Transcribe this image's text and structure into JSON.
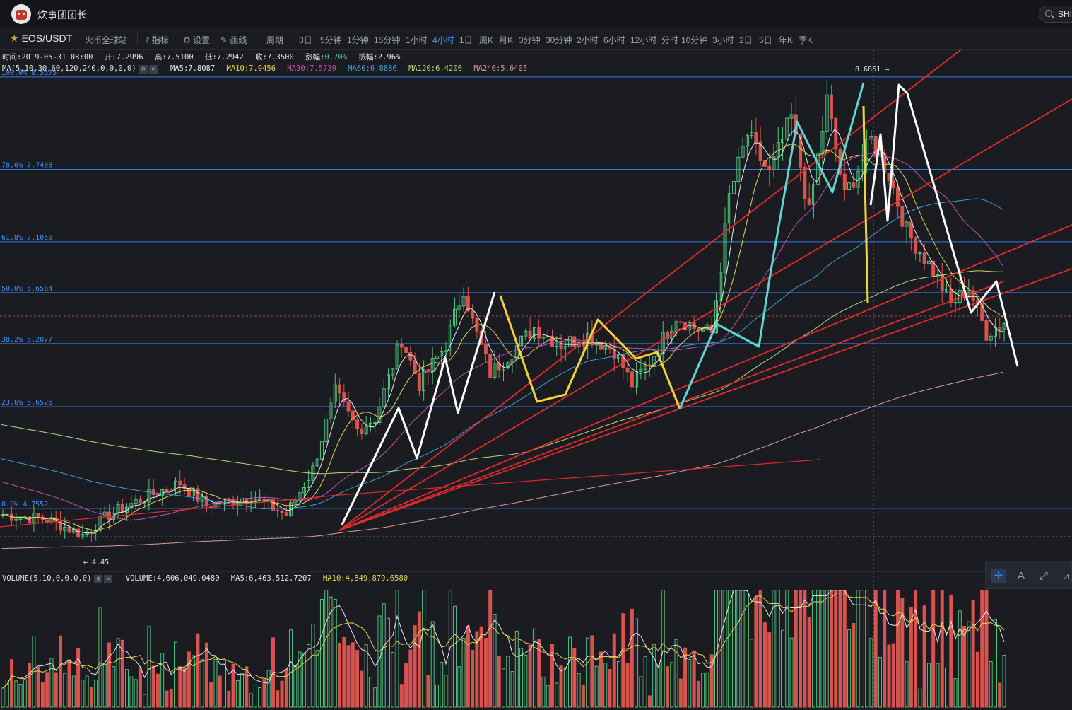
{
  "app": {
    "title": "炊事团团长",
    "search_text": "SHI"
  },
  "toolbar": {
    "symbol": "EOS/USDT",
    "exchange": "火币全球站",
    "indicator_label": "指标",
    "settings_label": "设置",
    "draw_label": "画线",
    "period_label": "周期",
    "periods": [
      "3日",
      "5分钟",
      "1分钟",
      "15分钟",
      "1小时",
      "4小时",
      "1日",
      "周K",
      "月K",
      "3分钟",
      "30分钟",
      "2小时",
      "6小时",
      "12小时",
      "分时",
      "10分钟",
      "3小时",
      "2日",
      "5日",
      "年K",
      "季K"
    ],
    "active_period": "4小时"
  },
  "ohlc": {
    "time": "时间:2019-05-31 08:00",
    "open": "开:7.2996",
    "high": "高:7.5100",
    "low": "低:7.2942",
    "close": "收:7.3500",
    "change_label": "涨幅:",
    "change_value": "0.70%",
    "amplitude": "振幅:2.96%"
  },
  "ma_line": {
    "label": "MA(5,10,30,60,120,240,0,0,0,0)",
    "ma5": "MA5:7.8087",
    "ma10": "MA10:7.9456",
    "ma30": "MA30:7.5739",
    "ma60": "MA60:6.8886",
    "ma120": "MA120:6.4206",
    "ma240": "MA240:5.6405"
  },
  "volume_line": {
    "label": "VOLUME(5,10,0,0,0,0)",
    "volume": "VOLUME:4,606,049.0480",
    "ma5": "MA5:6,463,512.7207",
    "ma10": "MA10:4,849,879.6580"
  },
  "colors": {
    "up": "#4fc37c",
    "down": "#d8524e",
    "fib": "#2f7be0",
    "ma5": "#e8e8e8",
    "ma10": "#e8d44d",
    "ma30": "#c54fb0",
    "ma60": "#3aa0d8",
    "ma120": "#b7d77a",
    "ma240": "#d99a9a",
    "annot_red": "#e02b2b",
    "annot_white": "#ffffff",
    "annot_yellow": "#f2d43a",
    "annot_cyan": "#5fd6cf"
  },
  "chart_data": {
    "type": "candlestick",
    "pair": "EOS/USDT",
    "interval": "4小时",
    "y_range": [
      4.2,
      8.8
    ],
    "fib_levels": [
      {
        "label": "100.0% 8.5575",
        "value": 8.5575
      },
      {
        "label": "78.6% 7.7438",
        "value": 7.7438
      },
      {
        "label": "61.8% 7.1050",
        "value": 7.105
      },
      {
        "label": "50.0% 6.6564",
        "value": 6.6564
      },
      {
        "label": "38.2% 6.2077",
        "value": 6.2077
      },
      {
        "label": "23.6% 5.6526",
        "value": 5.6526
      },
      {
        "label": "0.0% 4.7552",
        "value": 4.7552
      }
    ],
    "annotations": {
      "high_label": "8.6861 →",
      "low_label": "← 4.45"
    },
    "close_waypoints": [
      [
        0,
        4.7
      ],
      [
        10,
        4.66
      ],
      [
        18,
        4.52
      ],
      [
        24,
        4.7
      ],
      [
        32,
        4.85
      ],
      [
        40,
        4.98
      ],
      [
        46,
        4.78
      ],
      [
        56,
        4.86
      ],
      [
        64,
        4.7
      ],
      [
        70,
        5.1
      ],
      [
        75,
        5.78
      ],
      [
        80,
        5.45
      ],
      [
        84,
        5.55
      ],
      [
        90,
        6.25
      ],
      [
        94,
        5.85
      ],
      [
        100,
        6.2
      ],
      [
        104,
        6.7
      ],
      [
        106,
        6.4
      ],
      [
        110,
        5.95
      ],
      [
        114,
        6.1
      ],
      [
        120,
        6.35
      ],
      [
        126,
        6.2
      ],
      [
        132,
        6.28
      ],
      [
        138,
        6.15
      ],
      [
        142,
        5.85
      ],
      [
        146,
        6.05
      ],
      [
        152,
        6.45
      ],
      [
        156,
        6.35
      ],
      [
        160,
        6.3
      ],
      [
        164,
        7.5
      ],
      [
        168,
        8.05
      ],
      [
        173,
        7.7
      ],
      [
        178,
        8.2
      ],
      [
        182,
        7.35
      ],
      [
        186,
        8.35
      ],
      [
        190,
        7.5
      ],
      [
        196,
        8.0
      ],
      [
        200,
        7.7
      ],
      [
        204,
        7.2
      ],
      [
        210,
        6.85
      ],
      [
        214,
        6.55
      ],
      [
        218,
        6.7
      ],
      [
        222,
        6.3
      ],
      [
        226,
        6.4
      ]
    ],
    "volume_range": [
      0,
      55000000
    ]
  }
}
